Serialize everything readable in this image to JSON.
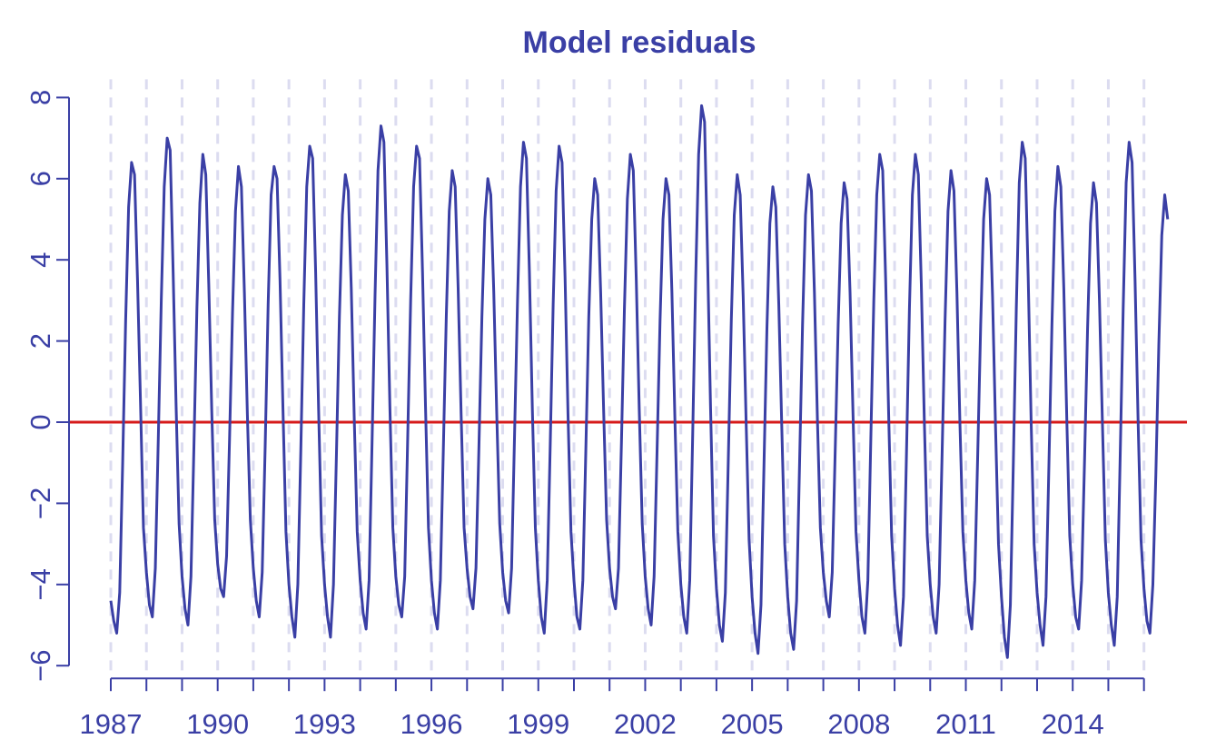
{
  "chart_data": {
    "type": "line",
    "title": "Model residuals",
    "xlabel": "",
    "ylabel": "",
    "xlim": [
      1987,
      2016.9
    ],
    "ylim": [
      -6,
      8
    ],
    "x_ticks": [
      1987,
      1990,
      1993,
      1996,
      1999,
      2002,
      2005,
      2008,
      2011,
      2014
    ],
    "y_ticks": [
      -6,
      -4,
      -2,
      0,
      2,
      4,
      6,
      8
    ],
    "y_tick_labels": [
      "−6",
      "−4",
      "−2",
      "0",
      "2",
      "4",
      "6",
      "8"
    ],
    "grid": "vertical dashed lines at each year",
    "reference_line": {
      "y": 0,
      "color": "#d61a1a"
    },
    "colors": {
      "series": "#3a3fa5",
      "zero_line": "#d61a1a",
      "grid": "#dcdcf0",
      "text": "#3a3fa5"
    },
    "sampling": "monthly, starting 1987-01",
    "yearly_cycle": {
      "years": [
        1987,
        1988,
        1989,
        1990,
        1991,
        1992,
        1993,
        1994,
        1995,
        1996,
        1997,
        1998,
        1999,
        2000,
        2001,
        2002,
        2003,
        2004,
        2005,
        2006,
        2007,
        2008,
        2009,
        2010,
        2011,
        2012,
        2013,
        2014,
        2015,
        2016
      ],
      "peaks": [
        6.4,
        7.0,
        6.6,
        6.3,
        6.3,
        6.8,
        6.1,
        7.3,
        6.8,
        6.2,
        6.0,
        6.9,
        6.8,
        6.0,
        6.6,
        6.0,
        7.8,
        6.1,
        5.8,
        6.1,
        5.9,
        6.6,
        6.6,
        6.2,
        6.0,
        6.9,
        6.3,
        5.9,
        6.9,
        5.6
      ],
      "troughs": [
        -5.2,
        -4.8,
        -5.0,
        -4.3,
        -4.8,
        -5.3,
        -5.3,
        -5.1,
        -4.8,
        -5.1,
        -4.6,
        -4.7,
        -5.2,
        -5.1,
        -4.6,
        -5.0,
        -5.2,
        -5.4,
        -5.7,
        -5.6,
        -4.8,
        -5.2,
        -5.5,
        -5.2,
        -5.1,
        -5.8,
        -5.5,
        -5.1,
        -5.5,
        -5.2
      ]
    },
    "series": [
      {
        "name": "",
        "values": [
          -4.4,
          -4.9,
          -5.2,
          -4.2,
          -1.0,
          2.5,
          5.3,
          6.4,
          6.1,
          3.5,
          0.5,
          -2.6,
          -3.7,
          -4.5,
          -4.8,
          -3.6,
          -0.4,
          3.0,
          5.8,
          7.0,
          6.7,
          3.7,
          0.4,
          -2.5,
          -3.8,
          -4.6,
          -5.0,
          -3.8,
          -0.6,
          2.8,
          5.4,
          6.6,
          6.1,
          3.4,
          0.3,
          -2.4,
          -3.5,
          -4.1,
          -4.3,
          -3.3,
          -0.4,
          2.7,
          5.2,
          6.3,
          5.8,
          3.2,
          0.2,
          -2.4,
          -3.6,
          -4.4,
          -4.8,
          -3.7,
          -0.6,
          2.9,
          5.6,
          6.3,
          6.0,
          3.5,
          0.3,
          -2.7,
          -4.0,
          -4.8,
          -5.3,
          -4.0,
          -0.7,
          2.9,
          5.8,
          6.8,
          6.5,
          3.7,
          0.3,
          -2.8,
          -4.0,
          -4.8,
          -5.3,
          -4.0,
          -0.8,
          2.6,
          5.1,
          6.1,
          5.7,
          3.3,
          0.1,
          -2.7,
          -3.9,
          -4.7,
          -5.1,
          -3.9,
          -0.5,
          3.1,
          6.2,
          7.3,
          6.9,
          3.9,
          0.4,
          -2.6,
          -3.8,
          -4.5,
          -4.8,
          -3.8,
          -0.4,
          3.0,
          5.8,
          6.8,
          6.5,
          3.7,
          0.4,
          -2.6,
          -3.9,
          -4.7,
          -5.1,
          -3.9,
          -0.7,
          2.6,
          5.2,
          6.2,
          5.8,
          3.3,
          0.2,
          -2.6,
          -3.6,
          -4.3,
          -4.6,
          -3.6,
          -0.6,
          2.6,
          5.0,
          6.0,
          5.6,
          3.2,
          0.2,
          -2.5,
          -3.7,
          -4.4,
          -4.7,
          -3.6,
          -0.3,
          3.0,
          5.8,
          6.9,
          6.5,
          3.7,
          0.3,
          -2.6,
          -3.9,
          -4.8,
          -5.2,
          -3.9,
          -0.6,
          2.9,
          5.7,
          6.8,
          6.4,
          3.6,
          0.2,
          -2.7,
          -3.9,
          -4.8,
          -5.1,
          -3.9,
          -0.7,
          2.6,
          5.0,
          6.0,
          5.6,
          3.2,
          0.3,
          -2.4,
          -3.6,
          -4.3,
          -4.6,
          -3.6,
          -0.5,
          2.8,
          5.5,
          6.6,
          6.2,
          3.5,
          0.3,
          -2.5,
          -3.8,
          -4.6,
          -5.0,
          -3.8,
          -0.7,
          2.5,
          5.0,
          6.0,
          5.6,
          3.2,
          0.1,
          -2.7,
          -4.0,
          -4.8,
          -5.2,
          -3.9,
          -0.3,
          3.5,
          6.6,
          7.8,
          7.4,
          4.1,
          0.4,
          -2.8,
          -4.1,
          -5.0,
          -5.4,
          -4.2,
          -0.9,
          2.5,
          5.1,
          6.1,
          5.6,
          3.1,
          0.0,
          -2.9,
          -4.3,
          -5.2,
          -5.7,
          -4.5,
          -1.1,
          2.3,
          4.9,
          5.8,
          5.3,
          2.9,
          -0.1,
          -3.0,
          -4.3,
          -5.2,
          -5.6,
          -4.4,
          -1.0,
          2.4,
          5.1,
          6.1,
          5.7,
          3.2,
          0.1,
          -2.6,
          -3.7,
          -4.4,
          -4.8,
          -3.7,
          -0.7,
          2.4,
          4.9,
          5.9,
          5.5,
          3.2,
          0.2,
          -2.7,
          -3.9,
          -4.8,
          -5.2,
          -3.9,
          -0.4,
          3.0,
          5.6,
          6.6,
          6.2,
          3.5,
          0.2,
          -2.8,
          -4.1,
          -5.0,
          -5.5,
          -4.3,
          -0.8,
          2.8,
          5.6,
          6.6,
          6.1,
          3.4,
          0.1,
          -2.8,
          -4.0,
          -4.8,
          -5.2,
          -4.0,
          -0.8,
          2.5,
          5.2,
          6.2,
          5.7,
          3.2,
          0.0,
          -2.7,
          -3.9,
          -4.7,
          -5.1,
          -3.9,
          -0.8,
          2.4,
          5.0,
          6.0,
          5.6,
          3.1,
          -0.1,
          -3.0,
          -4.3,
          -5.3,
          -5.8,
          -4.5,
          -1.0,
          2.8,
          5.9,
          6.9,
          6.5,
          3.6,
          0.0,
          -3.0,
          -4.2,
          -5.0,
          -5.5,
          -4.3,
          -1.0,
          2.4,
          5.2,
          6.3,
          5.8,
          3.3,
          0.1,
          -2.8,
          -4.0,
          -4.8,
          -5.1,
          -3.9,
          -0.9,
          2.3,
          4.9,
          5.9,
          5.4,
          3.0,
          0.0,
          -2.9,
          -4.2,
          -5.0,
          -5.5,
          -4.3,
          -0.8,
          2.8,
          5.9,
          6.9,
          6.4,
          3.5,
          0.1,
          -2.9,
          -4.1,
          -4.9,
          -5.2,
          -4.0,
          -1.3,
          1.9,
          4.6,
          5.6,
          5.0
        ]
      }
    ]
  }
}
